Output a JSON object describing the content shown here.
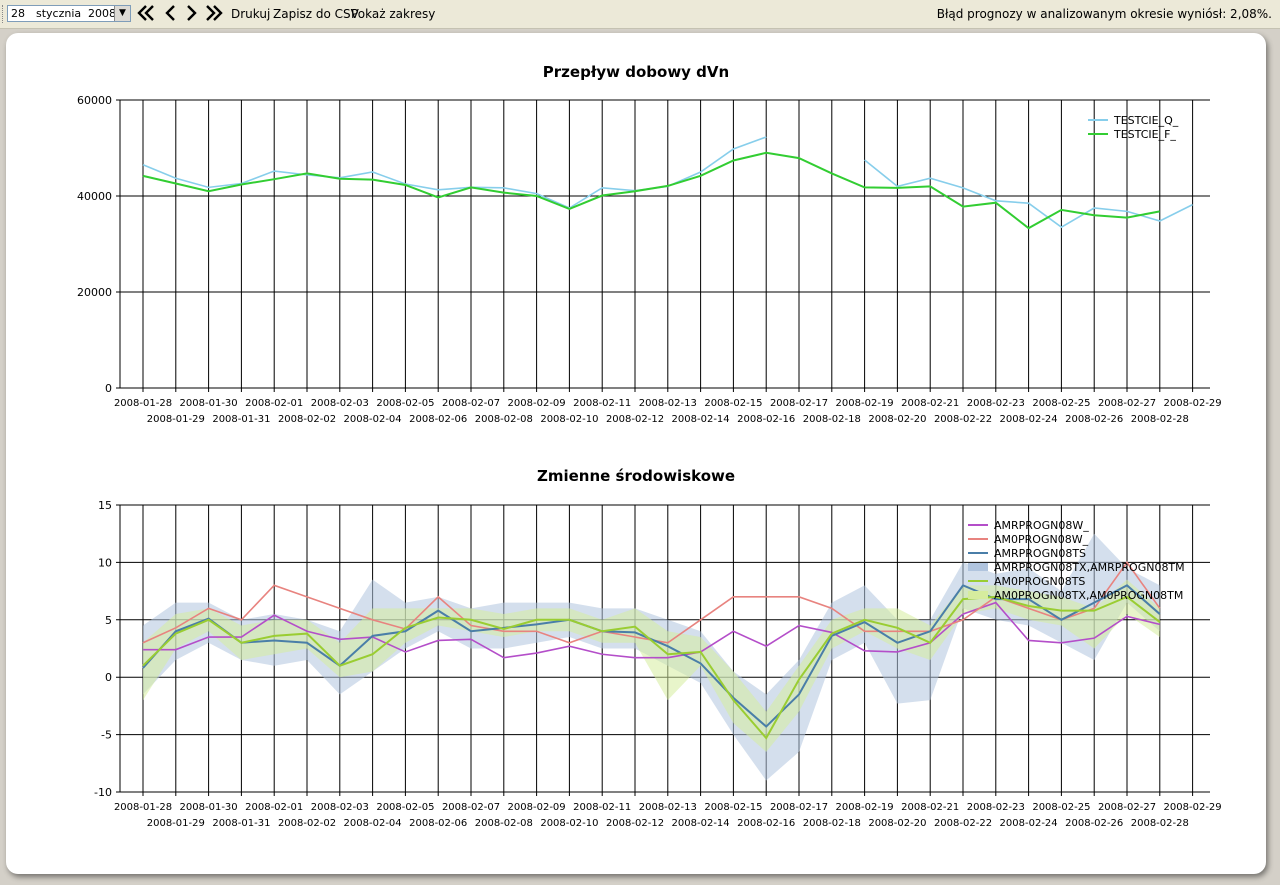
{
  "toolbar": {
    "date": {
      "day": "28",
      "month": "stycznia",
      "year": "2008"
    },
    "nav": [
      "first-icon",
      "prev-icon",
      "next-icon",
      "last-icon"
    ],
    "print_label": "Drukuj",
    "csv_label": "Zapisz do CSV",
    "ranges_label": "Pokaż zakresy",
    "status_text": "Błąd prognozy w analizowanym okresie wyniósł: 2,08%."
  },
  "chart_data": [
    {
      "type": "line",
      "title": "Przepływ dobowy dVn",
      "xlabel": "",
      "ylabel": "",
      "ylim": [
        0,
        60000
      ],
      "yticks": [
        0,
        20000,
        40000,
        60000
      ],
      "grid": true,
      "legend_position": "top-right",
      "x": [
        "2008-01-28",
        "2008-01-29",
        "2008-01-30",
        "2008-01-31",
        "2008-02-01",
        "2008-02-02",
        "2008-02-03",
        "2008-02-04",
        "2008-02-05",
        "2008-02-06",
        "2008-02-07",
        "2008-02-08",
        "2008-02-09",
        "2008-02-10",
        "2008-02-11",
        "2008-02-12",
        "2008-02-13",
        "2008-02-14",
        "2008-02-15",
        "2008-02-16",
        "2008-02-17",
        "2008-02-18",
        "2008-02-19",
        "2008-02-20",
        "2008-02-21",
        "2008-02-22",
        "2008-02-23",
        "2008-02-24",
        "2008-02-25",
        "2008-02-26",
        "2008-02-27",
        "2008-02-28",
        "2008-02-29"
      ],
      "series": [
        {
          "name": "TESTCIE_Q_",
          "color": "#87ceeb",
          "values": [
            46500,
            43700,
            41800,
            42600,
            45200,
            44400,
            43800,
            45000,
            42500,
            41300,
            41800,
            41700,
            40500,
            37500,
            41700,
            41100,
            42000,
            45000,
            49800,
            52300,
            null,
            null,
            47500,
            42000,
            43700,
            41700,
            39000,
            38500,
            33500,
            37500,
            36800,
            34800,
            38200
          ]
        },
        {
          "name": "TESTCIE_F_",
          "color": "#32cd32",
          "values": [
            44200,
            42600,
            41000,
            42400,
            43500,
            44700,
            43600,
            43400,
            42300,
            39700,
            41800,
            40700,
            40000,
            37300,
            40100,
            41000,
            42100,
            44200,
            47400,
            49000,
            47900,
            44700,
            41800,
            41700,
            42000,
            37800,
            38600,
            33300,
            37100,
            36000,
            35500,
            36800,
            null
          ]
        }
      ]
    },
    {
      "type": "line",
      "title": "Zmienne środowiskowe",
      "xlabel": "",
      "ylabel": "",
      "ylim": [
        -10,
        15
      ],
      "yticks": [
        -10,
        -5,
        0,
        5,
        10,
        15
      ],
      "grid": true,
      "legend_position": "top-right",
      "x": [
        "2008-01-28",
        "2008-01-29",
        "2008-01-30",
        "2008-01-31",
        "2008-02-01",
        "2008-02-02",
        "2008-02-03",
        "2008-02-04",
        "2008-02-05",
        "2008-02-06",
        "2008-02-07",
        "2008-02-08",
        "2008-02-09",
        "2008-02-10",
        "2008-02-11",
        "2008-02-12",
        "2008-02-13",
        "2008-02-14",
        "2008-02-15",
        "2008-02-16",
        "2008-02-17",
        "2008-02-18",
        "2008-02-19",
        "2008-02-20",
        "2008-02-21",
        "2008-02-22",
        "2008-02-23",
        "2008-02-24",
        "2008-02-25",
        "2008-02-26",
        "2008-02-27",
        "2008-02-28",
        "2008-02-29"
      ],
      "series": [
        {
          "name": "AMRPROGN08W_",
          "color": "#b44ec9",
          "values": [
            2.4,
            2.4,
            3.5,
            3.5,
            5.4,
            4.0,
            3.3,
            3.5,
            2.2,
            3.2,
            3.3,
            1.7,
            2.1,
            2.7,
            2.0,
            1.7,
            1.7,
            2.2,
            4.0,
            2.7,
            4.5,
            3.9,
            2.3,
            2.2,
            3.0,
            5.5,
            6.5,
            3.2,
            3.0,
            3.4,
            5.3,
            4.6,
            null
          ]
        },
        {
          "name": "AM0PROGN08W_",
          "color": "#e8837f",
          "values": [
            3.0,
            4.3,
            6.0,
            5.0,
            8.0,
            7.0,
            6.0,
            5.0,
            4.2,
            7.0,
            4.5,
            4.0,
            4.0,
            3.0,
            4.0,
            3.5,
            3.0,
            5.0,
            7.0,
            7.0,
            7.0,
            6.0,
            4.0,
            4.0,
            4.0,
            5.0,
            7.0,
            6.0,
            5.0,
            6.0,
            10.0,
            6.0,
            null
          ]
        },
        {
          "name": "AMRPROGN08TS",
          "color": "#4a7ea8",
          "values": [
            0.8,
            4.0,
            5.1,
            3.0,
            3.2,
            3.0,
            1.0,
            3.6,
            4.0,
            5.8,
            4.0,
            4.3,
            4.6,
            5.0,
            4.0,
            3.9,
            2.7,
            1.2,
            -1.8,
            -4.3,
            -1.5,
            3.6,
            4.8,
            3.0,
            4.0,
            8.0,
            6.8,
            6.8,
            5.0,
            6.5,
            8.0,
            5.5,
            null
          ]
        },
        {
          "name": "AMRPROGN08TX,AMRPROGN08TM",
          "color": "#b0c4de",
          "band": true,
          "lower": [
            -1.5,
            1.5,
            3.0,
            1.5,
            1.0,
            1.5,
            -1.5,
            0.5,
            2.5,
            4.0,
            2.5,
            2.5,
            3.0,
            3.5,
            2.5,
            2.5,
            1.0,
            -0.5,
            -5.0,
            -9.0,
            -6.5,
            1.5,
            3.0,
            -2.3,
            -2.0,
            6.0,
            5.0,
            4.5,
            3.0,
            1.5,
            6.5,
            4.0,
            null
          ],
          "upper": [
            4.5,
            6.5,
            6.5,
            5.0,
            5.5,
            5.0,
            4.0,
            8.5,
            6.5,
            7.0,
            6.0,
            6.5,
            6.5,
            6.5,
            6.0,
            6.0,
            5.0,
            4.0,
            0.5,
            -1.5,
            1.5,
            6.5,
            8.0,
            5.0,
            5.0,
            10.0,
            9.0,
            9.5,
            7.5,
            12.5,
            9.5,
            8.0,
            null
          ]
        },
        {
          "name": "AM0PROGN08TS",
          "color": "#9acd32",
          "values": [
            1.0,
            3.8,
            5.0,
            3.0,
            3.6,
            3.8,
            1.0,
            2.0,
            4.3,
            5.2,
            5.0,
            4.2,
            5.0,
            5.0,
            4.0,
            4.4,
            2.0,
            2.2,
            -2.0,
            -5.3,
            -0.2,
            3.8,
            5.0,
            4.3,
            3.0,
            6.8,
            7.0,
            6.2,
            5.8,
            5.8,
            7.0,
            4.8,
            null
          ]
        },
        {
          "name": "AM0PROGN08TX,AM0PROGN08TM",
          "color": "#d6ec9e",
          "band": true,
          "lower": [
            -2.0,
            2.5,
            4.0,
            1.5,
            2.0,
            2.5,
            0.0,
            0.5,
            3.0,
            4.5,
            4.0,
            3.5,
            4.0,
            4.0,
            3.0,
            3.0,
            -2.0,
            1.0,
            -4.0,
            -6.5,
            -3.0,
            2.5,
            4.0,
            2.5,
            1.5,
            5.5,
            6.0,
            5.0,
            4.5,
            2.5,
            5.5,
            3.5,
            null
          ],
          "upper": [
            3.0,
            5.5,
            6.0,
            4.5,
            5.0,
            5.0,
            3.0,
            6.0,
            6.0,
            6.0,
            6.0,
            5.5,
            6.0,
            6.0,
            5.0,
            6.0,
            4.0,
            3.5,
            0.5,
            -3.0,
            1.0,
            5.0,
            6.0,
            6.0,
            4.5,
            8.0,
            8.0,
            7.5,
            7.0,
            6.0,
            8.5,
            6.0,
            null
          ]
        }
      ]
    }
  ]
}
